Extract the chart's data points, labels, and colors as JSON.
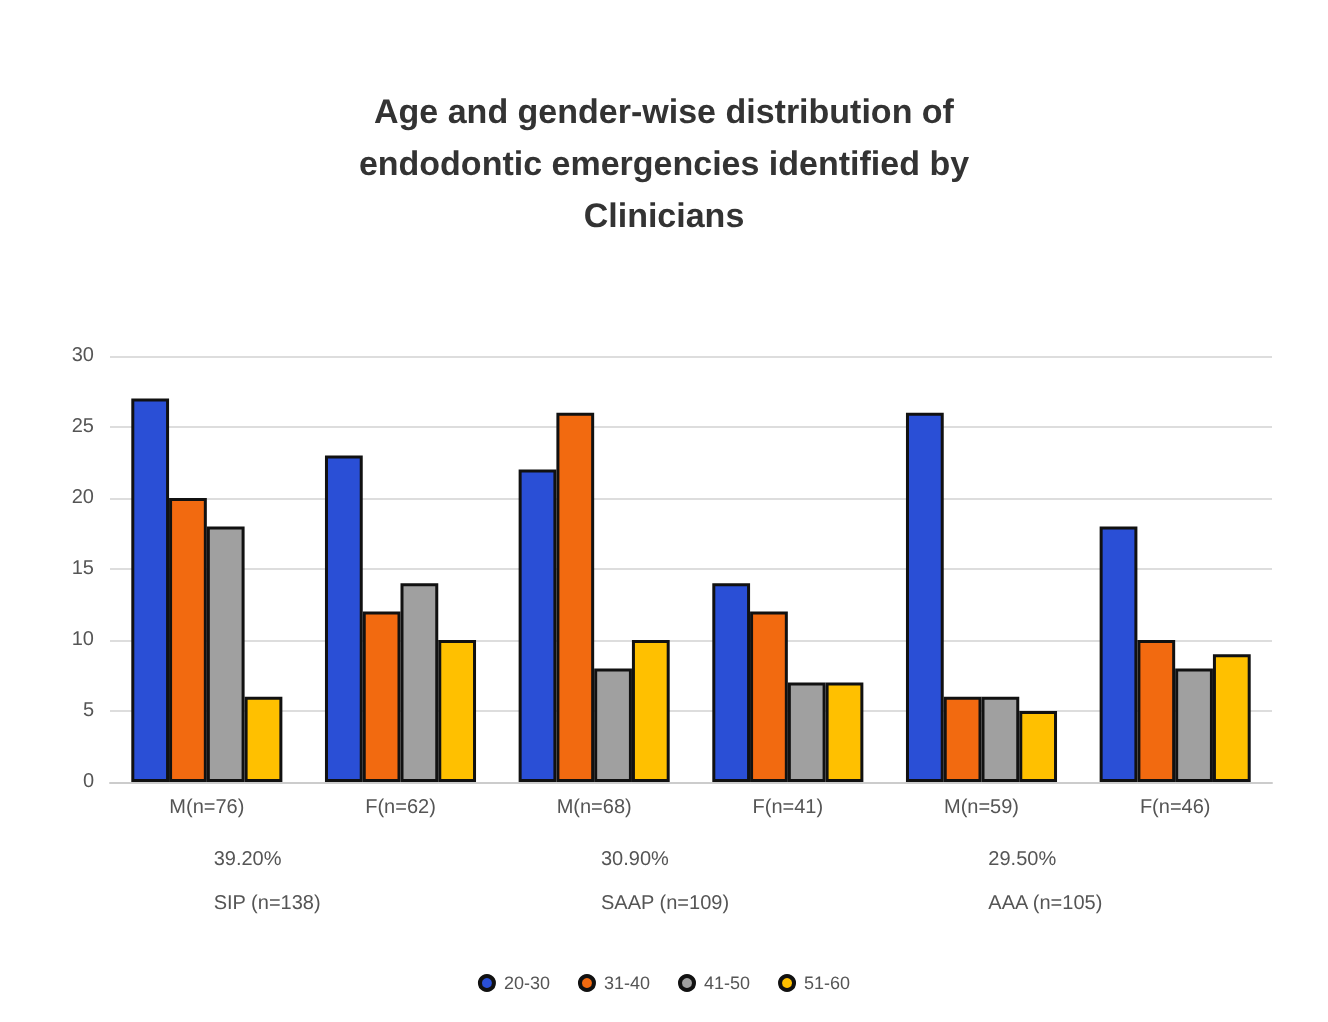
{
  "chart_data": {
    "type": "bar",
    "title": "Age and gender-wise distribution of\nendodontic emergencies identified by\nClinicians",
    "categories": [
      "M(n=76)",
      "F(n=62)",
      "M(n=68)",
      "F(n=41)",
      "M(n=59)",
      "F(n=46)"
    ],
    "series": [
      {
        "name": "20-30",
        "color": "#2a4fd6",
        "values": [
          27,
          23,
          22,
          14,
          26,
          18
        ]
      },
      {
        "name": "31-40",
        "color": "#f26a10",
        "values": [
          20,
          12,
          26,
          12,
          6,
          10
        ]
      },
      {
        "name": "41-50",
        "color": "#a0a0a0",
        "values": [
          18,
          14,
          8,
          7,
          6,
          8
        ]
      },
      {
        "name": "51-60",
        "color": "#ffc000",
        "values": [
          6,
          10,
          10,
          7,
          5,
          9
        ]
      }
    ],
    "annotations": [
      "39.20%\nSIP (n=138)",
      "30.90%\nSAAP (n=109)",
      "29.50%\nAAA (n=105)"
    ],
    "ylim": [
      0,
      30
    ],
    "yticks": [
      0,
      5,
      10,
      15,
      20,
      25,
      30
    ],
    "grid": "y",
    "legend": "bottom"
  }
}
